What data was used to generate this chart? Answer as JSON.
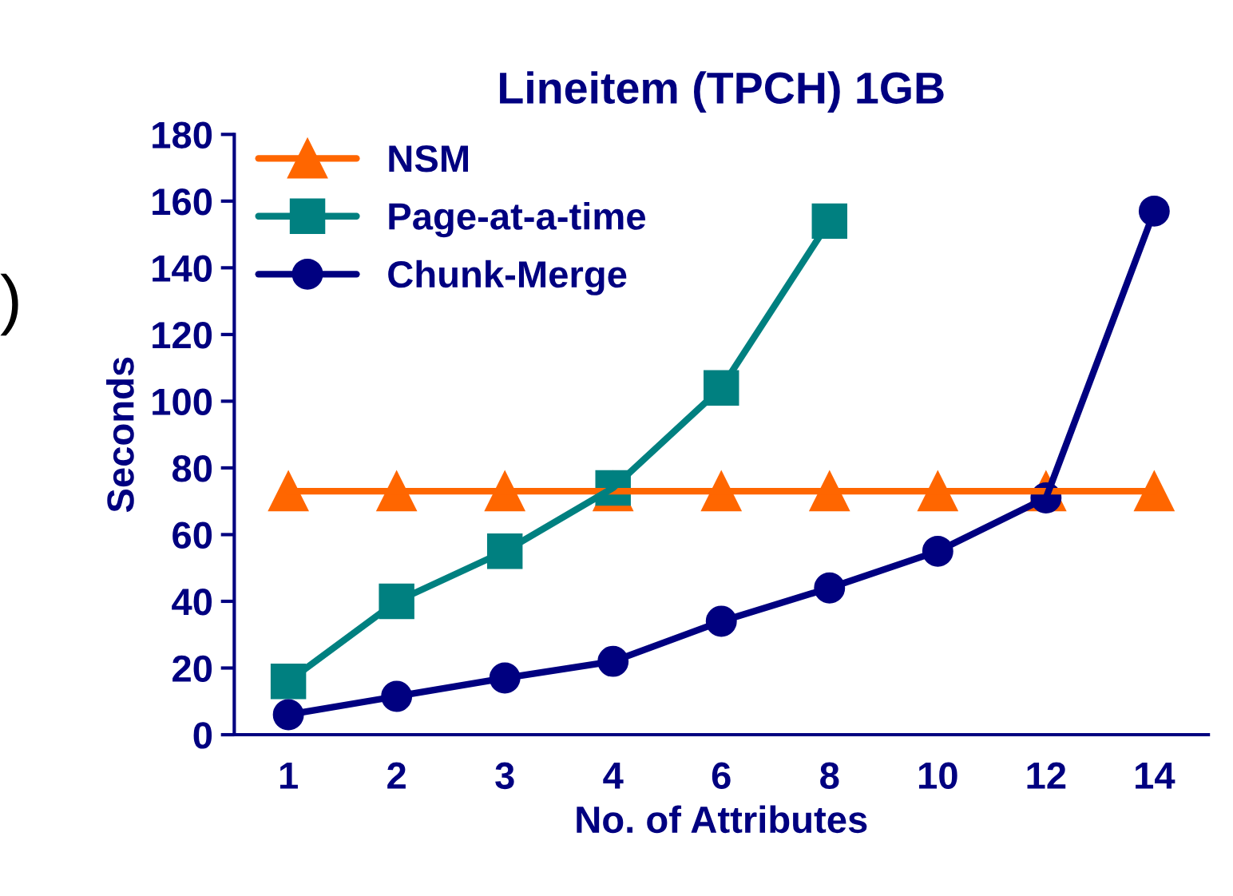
{
  "chart_data": {
    "type": "line",
    "title": "Lineitem (TPCH) 1GB",
    "xlabel": "No. of Attributes",
    "ylabel": "Seconds",
    "categories": [
      "1",
      "2",
      "3",
      "4",
      "6",
      "8",
      "10",
      "12",
      "14"
    ],
    "series": [
      {
        "name": "NSM",
        "color": "#ff6600",
        "marker": "triangle",
        "values": [
          73,
          73,
          73,
          73,
          73,
          73,
          73,
          73,
          73
        ]
      },
      {
        "name": "Page-at-a-time",
        "color": "#008080",
        "marker": "square",
        "values": [
          16,
          40,
          55,
          74,
          104,
          154,
          null,
          null,
          null
        ]
      },
      {
        "name": "Chunk-Merge",
        "color": "#000080",
        "marker": "circle",
        "values": [
          6,
          11.5,
          17,
          22,
          34,
          44,
          55,
          71,
          157
        ]
      }
    ],
    "ylim": [
      0,
      180
    ],
    "yticks": [
      0,
      20,
      40,
      60,
      80,
      100,
      120,
      140,
      160,
      180
    ],
    "grid": false,
    "legend": "top left",
    "annotations": [
      ")"
    ]
  }
}
